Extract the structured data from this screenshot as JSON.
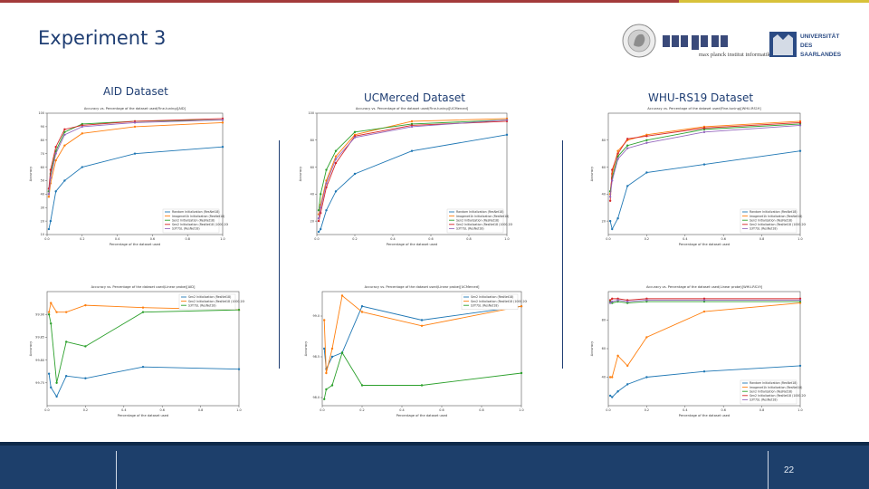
{
  "slide": {
    "title": "Experiment 3",
    "page_number": "22"
  },
  "logos": {
    "mpi_text": "max planck institut informatik",
    "uni_text": "UNIVERSITÄT DES SAARLANDES"
  },
  "datasets": [
    "AID Dataset",
    "UCMerced Dataset",
    "WHU-RS19 Dataset"
  ],
  "colors": {
    "title_blue": "#1f3e73",
    "footer_blue": "#1d3f6b",
    "top_red": "#a33b3b",
    "top_yellow": "#d8c23a",
    "blue": "#1f77b4",
    "orange": "#ff7f0e",
    "green": "#2ca02c",
    "red": "#d62728",
    "purple": "#9467bd"
  },
  "chart_data": [
    {
      "type": "line",
      "title": "Accuracy vs. Percentage of the dataset used(Fine-tuning)[AID]",
      "xlabel": "Percentage of the dataset used",
      "ylabel": "Accuracy",
      "xlim": [
        0.0,
        1.0
      ],
      "ylim": [
        10,
        100
      ],
      "xticks": [
        "0.0",
        "0.2",
        "0.4",
        "0.6",
        "0.8",
        "1.0"
      ],
      "yticks": [
        "10",
        "20",
        "30",
        "40",
        "50",
        "60",
        "70",
        "80",
        "90",
        "100"
      ],
      "legend_position": "lower-right",
      "x": [
        0.01,
        0.02,
        0.05,
        0.1,
        0.2,
        0.5,
        1.0
      ],
      "series": [
        {
          "name": "Random Initialization (ResNet18)",
          "values": [
            14,
            20,
            42,
            50,
            60,
            70,
            75
          ]
        },
        {
          "name": "Imagenet1k Initialization (ResNet18)",
          "values": [
            38,
            48,
            65,
            76,
            85,
            90,
            93
          ]
        },
        {
          "name": "Sen2 Initialization (ResNet18)",
          "values": [
            42,
            55,
            72,
            86,
            92,
            94,
            95
          ]
        },
        {
          "name": "Sen2 Initialization (ResNet18 (1000.20k))",
          "values": [
            44,
            58,
            75,
            88,
            91,
            94,
            96
          ]
        },
        {
          "name": "S3Y7SL (ResNet18)",
          "values": [
            40,
            52,
            70,
            84,
            90,
            93,
            95
          ]
        }
      ]
    },
    {
      "type": "line",
      "title": "Accuracy vs. Percentage of the dataset used(Fine-tuning)[UCMerced]",
      "xlabel": "Percentage of the dataset used",
      "ylabel": "Accuracy",
      "xlim": [
        0.0,
        1.0
      ],
      "ylim": [
        10,
        100
      ],
      "xticks": [
        "0.0",
        "0.2",
        "0.4",
        "0.6",
        "0.8",
        "1.0"
      ],
      "yticks": [
        "20",
        "40",
        "60",
        "80",
        "100"
      ],
      "legend_position": "lower-right",
      "x": [
        0.01,
        0.02,
        0.05,
        0.1,
        0.2,
        0.5,
        1.0
      ],
      "series": [
        {
          "name": "Random Initialization (ResNet18)",
          "values": [
            12,
            14,
            28,
            42,
            55,
            72,
            84
          ]
        },
        {
          "name": "Imagenet1k Initialization (ResNet18)",
          "values": [
            25,
            32,
            50,
            68,
            84,
            94,
            96
          ]
        },
        {
          "name": "Sen2 Initialization (ResNet18)",
          "values": [
            28,
            40,
            58,
            72,
            86,
            92,
            95
          ]
        },
        {
          "name": "Sen2 Initialization (ResNet18 (1000.20k))",
          "values": [
            20,
            26,
            45,
            63,
            83,
            91,
            94
          ]
        },
        {
          "name": "S3Y7SL (ResNet18)",
          "values": [
            22,
            30,
            48,
            66,
            82,
            90,
            95
          ]
        }
      ]
    },
    {
      "type": "line",
      "title": "Accuracy vs. Percentage of the dataset used(Fine-tuning)[WHU-RS19]",
      "xlabel": "Percentage of the dataset used",
      "ylabel": "Accuracy",
      "xlim": [
        0.0,
        1.0
      ],
      "ylim": [
        10,
        100
      ],
      "xticks": [
        "0.0",
        "0.2",
        "0.4",
        "0.6",
        "0.8",
        "1.0"
      ],
      "yticks": [
        "20",
        "40",
        "60",
        "80"
      ],
      "legend_position": "lower-right",
      "x": [
        0.01,
        0.02,
        0.05,
        0.1,
        0.2,
        0.5,
        1.0
      ],
      "series": [
        {
          "name": "Random Initialization (ResNet18)",
          "values": [
            20,
            14,
            22,
            46,
            56,
            62,
            72
          ]
        },
        {
          "name": "Imagenet1k Initialization (ResNet18)",
          "values": [
            40,
            55,
            72,
            80,
            84,
            90,
            94
          ]
        },
        {
          "name": "Sen2 Initialization (ResNet18)",
          "values": [
            42,
            52,
            68,
            76,
            80,
            88,
            92
          ]
        },
        {
          "name": "Sen2 Initialization (ResNet18 (1000.20k))",
          "values": [
            35,
            58,
            70,
            81,
            83,
            89,
            93
          ]
        },
        {
          "name": "S3Y7SL (ResNet18)",
          "values": [
            38,
            50,
            66,
            74,
            78,
            86,
            91
          ]
        }
      ]
    },
    {
      "type": "line",
      "title": "Accuracy vs. Percentage of the dataset used(Linear probe)[AID]",
      "xlabel": "Percentage of the dataset used",
      "ylabel": "Accuracy",
      "xlim": [
        0.0,
        1.0
      ],
      "ylim": [
        99.7,
        99.95
      ],
      "xticks": [
        "0.0",
        "0.2",
        "0.4",
        "0.6",
        "0.8",
        "1.0"
      ],
      "yticks": [
        "99.75",
        "99.80",
        "99.85",
        "99.90"
      ],
      "legend_position": "upper-right",
      "x": [
        0.01,
        0.02,
        0.05,
        0.1,
        0.2,
        0.5,
        1.0
      ],
      "series": [
        {
          "name": "Sen2 Initialization (ResNet18)",
          "values": [
            99.77,
            99.74,
            99.72,
            99.765,
            99.76,
            99.785,
            99.78
          ]
        },
        {
          "name": "Sen2 Initialization (ResNet18 (1000.20k))",
          "values": [
            99.905,
            99.925,
            99.905,
            99.905,
            99.92,
            99.915,
            99.91
          ]
        },
        {
          "name": "S3Y7SL (ResNet18)",
          "values": [
            99.9,
            99.88,
            99.75,
            99.84,
            99.83,
            99.905,
            99.91
          ]
        }
      ]
    },
    {
      "type": "line",
      "title": "Accuracy vs. Percentage of the dataset used(Linear probe)[UCMerced]",
      "xlabel": "Percentage of the dataset used",
      "ylabel": "Accuracy",
      "xlim": [
        0.0,
        1.0
      ],
      "ylim": [
        97.9,
        99.3
      ],
      "xticks": [
        "0.0",
        "0.2",
        "0.4",
        "0.6",
        "0.8",
        "1.0"
      ],
      "yticks": [
        "98.0",
        "98.5",
        "99.0"
      ],
      "legend_position": "upper-right",
      "x": [
        0.01,
        0.02,
        0.05,
        0.1,
        0.2,
        0.5,
        1.0
      ],
      "series": [
        {
          "name": "Sen2 Initialization (ResNet18)",
          "values": [
            98.6,
            98.35,
            98.5,
            98.55,
            99.12,
            98.95,
            99.12
          ]
        },
        {
          "name": "Sen2 Initialization (ResNet18 (1000.20k))",
          "values": [
            98.95,
            98.3,
            98.6,
            99.25,
            99.05,
            98.88,
            99.12
          ]
        },
        {
          "name": "S3Y7SL (ResNet18)",
          "values": [
            97.98,
            98.1,
            98.15,
            98.55,
            98.15,
            98.15,
            98.3
          ]
        }
      ]
    },
    {
      "type": "line",
      "title": "Accuracy vs. Percentage of the dataset used(Linear probe)[WHU-RS19]",
      "xlabel": "Percentage of the dataset used",
      "ylabel": "Accuracy",
      "xlim": [
        0.0,
        1.0
      ],
      "ylim": [
        20,
        100
      ],
      "xticks": [
        "0.0",
        "0.2",
        "0.4",
        "0.6",
        "0.8",
        "1.0"
      ],
      "yticks": [
        "40",
        "60",
        "80"
      ],
      "legend_position": "lower-right",
      "x": [
        0.01,
        0.02,
        0.05,
        0.1,
        0.2,
        0.5,
        1.0
      ],
      "series": [
        {
          "name": "Random Initialization (ResNet18)",
          "values": [
            27,
            26,
            30,
            35,
            40,
            44,
            48
          ]
        },
        {
          "name": "Imagenet1k Initialization (ResNet18)",
          "values": [
            40,
            40,
            55,
            48,
            68,
            86,
            92
          ]
        },
        {
          "name": "Sen2 Initialization (ResNet18)",
          "values": [
            93,
            92,
            93,
            92,
            93,
            93,
            93
          ]
        },
        {
          "name": "Sen2 Initialization (ResNet18 (1000.20k))",
          "values": [
            94,
            95,
            95,
            94,
            95,
            95,
            95
          ]
        },
        {
          "name": "S3Y7SL (ResNet18)",
          "values": [
            92,
            93,
            94,
            93,
            94,
            94,
            94
          ]
        }
      ]
    }
  ]
}
